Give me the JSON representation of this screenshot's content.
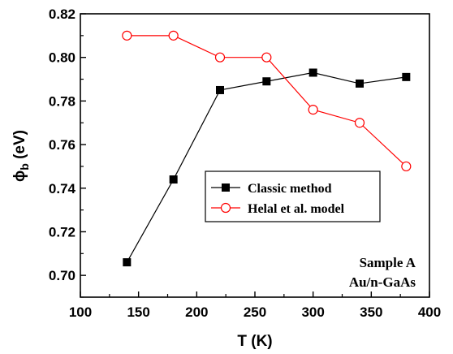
{
  "chart_data": {
    "type": "line",
    "xlabel": "T (K)",
    "ylabel_main": "ϕ",
    "ylabel_sub": "b",
    "ylabel_rest": " (eV)",
    "xlim": [
      100,
      400
    ],
    "ylim": [
      0.69,
      0.82
    ],
    "xticks": [
      100,
      150,
      200,
      250,
      300,
      350,
      400
    ],
    "yticks": [
      0.7,
      0.72,
      0.74,
      0.76,
      0.78,
      0.8,
      0.82
    ],
    "ytick_labels": [
      "0.70",
      "0.72",
      "0.74",
      "0.76",
      "0.78",
      "0.80",
      "0.82"
    ],
    "grid": false,
    "legend_position": "center-right",
    "series": [
      {
        "name": "Classic method",
        "color": "#000000",
        "marker": "filled-square",
        "x": [
          140,
          180,
          220,
          260,
          300,
          340,
          380
        ],
        "y": [
          0.706,
          0.744,
          0.785,
          0.789,
          0.793,
          0.788,
          0.791
        ]
      },
      {
        "name": "Helal et al. model",
        "color": "#ff0000",
        "marker": "open-circle",
        "x": [
          140,
          180,
          220,
          260,
          300,
          340,
          380
        ],
        "y": [
          0.81,
          0.81,
          0.8,
          0.8,
          0.776,
          0.77,
          0.75
        ]
      }
    ],
    "annotation": [
      "Sample A",
      "Au/n-GaAs"
    ]
  }
}
